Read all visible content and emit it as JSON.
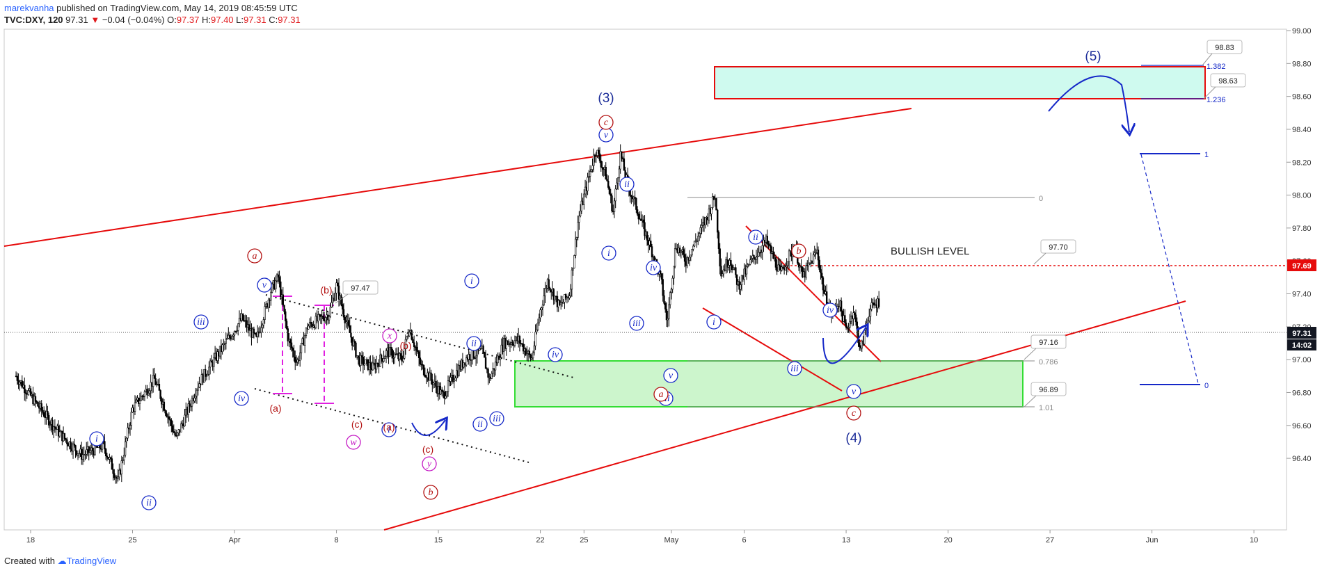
{
  "header": {
    "author": "marekvanha",
    "published_text": "published on TradingView.com, May 14, 2019 08:45:59 UTC",
    "symbol": "TVC:DXY, 120",
    "last_price": "97.31",
    "change_arrow": "▼",
    "change": "−0.04 (−0.04%)",
    "o_label": "O:",
    "o_value": "97.37",
    "h_label": "H:",
    "h_value": "97.40",
    "l_label": "L:",
    "l_value": "97.31",
    "c_label": "C:",
    "c_value": "97.31"
  },
  "footer": {
    "created_with": "Created with",
    "brand": "TradingView"
  },
  "chart_data": {
    "type": "candlestick",
    "title": "TVC:DXY, 120",
    "ylim": [
      96.2,
      99.0
    ],
    "y_ticks": [
      "99.00",
      "98.80",
      "98.60",
      "98.40",
      "98.20",
      "98.00",
      "97.80",
      "97.60",
      "97.40",
      "97.20",
      "97.00",
      "96.80",
      "96.60",
      "96.40"
    ],
    "x_ticks": [
      {
        "label": "18",
        "day": 0
      },
      {
        "label": "25",
        "day": 7
      },
      {
        "label": "Apr",
        "day": 14
      },
      {
        "label": "8",
        "day": 21
      },
      {
        "label": "15",
        "day": 28
      },
      {
        "label": "22",
        "day": 35
      },
      {
        "label": "25",
        "day": 38
      },
      {
        "label": "May",
        "day": 44
      },
      {
        "label": "6",
        "day": 49
      },
      {
        "label": "13",
        "day": 56
      },
      {
        "label": "20",
        "day": 63
      },
      {
        "label": "27",
        "day": 70
      },
      {
        "label": "Jun",
        "day": 77
      },
      {
        "label": "10",
        "day": 84
      }
    ],
    "price_keypoints": [
      [
        -1.0,
        96.9
      ],
      [
        0.5,
        96.72
      ],
      [
        2.0,
        96.55
      ],
      [
        3.5,
        96.42
      ],
      [
        5.0,
        96.48
      ],
      [
        6.0,
        96.26
      ],
      [
        7.0,
        96.7
      ],
      [
        8.5,
        96.88
      ],
      [
        10.0,
        96.52
      ],
      [
        11.5,
        96.85
      ],
      [
        13.0,
        97.05
      ],
      [
        14.5,
        97.25
      ],
      [
        15.5,
        97.12
      ],
      [
        16.5,
        97.42
      ],
      [
        17.0,
        97.5
      ],
      [
        17.7,
        97.12
      ],
      [
        18.3,
        96.98
      ],
      [
        19.0,
        97.2
      ],
      [
        20.5,
        97.28
      ],
      [
        21.0,
        97.45
      ],
      [
        21.6,
        97.25
      ],
      [
        22.5,
        97.0
      ],
      [
        23.5,
        96.95
      ],
      [
        24.5,
        97.05
      ],
      [
        25.5,
        97.0
      ],
      [
        26.0,
        97.2
      ],
      [
        26.8,
        96.96
      ],
      [
        27.5,
        96.88
      ],
      [
        28.3,
        96.78
      ],
      [
        29.2,
        96.92
      ],
      [
        30.0,
        97.02
      ],
      [
        31.0,
        97.05
      ],
      [
        31.5,
        96.88
      ],
      [
        32.5,
        97.1
      ],
      [
        33.5,
        97.12
      ],
      [
        34.4,
        97.0
      ],
      [
        35.0,
        97.3
      ],
      [
        35.5,
        97.48
      ],
      [
        36.3,
        97.32
      ],
      [
        37.0,
        97.4
      ],
      [
        37.6,
        97.85
      ],
      [
        38.3,
        98.1
      ],
      [
        38.8,
        98.28
      ],
      [
        39.5,
        98.12
      ],
      [
        40.0,
        97.9
      ],
      [
        40.5,
        98.25
      ],
      [
        41.0,
        98.06
      ],
      [
        41.5,
        97.95
      ],
      [
        42.0,
        97.82
      ],
      [
        42.7,
        97.65
      ],
      [
        43.3,
        97.48
      ],
      [
        43.7,
        97.22
      ],
      [
        44.3,
        97.7
      ],
      [
        45.0,
        97.6
      ],
      [
        46.0,
        97.78
      ],
      [
        46.5,
        97.88
      ],
      [
        47.0,
        98.0
      ],
      [
        47.4,
        97.52
      ],
      [
        48.0,
        97.62
      ],
      [
        48.6,
        97.45
      ],
      [
        49.5,
        97.6
      ],
      [
        50.5,
        97.72
      ],
      [
        51.5,
        97.52
      ],
      [
        52.0,
        97.62
      ],
      [
        52.5,
        97.68
      ],
      [
        53.0,
        97.5
      ],
      [
        54.0,
        97.66
      ],
      [
        54.5,
        97.4
      ],
      [
        55.0,
        97.28
      ],
      [
        55.5,
        97.35
      ],
      [
        56.0,
        97.18
      ],
      [
        56.5,
        97.3
      ],
      [
        57.0,
        97.05
      ],
      [
        57.6,
        97.3
      ],
      [
        58.3,
        97.36
      ]
    ],
    "current_price": 97.31,
    "current_time": "14:02",
    "price_labels": [
      "97.47",
      "98.83",
      "98.63",
      "97.70",
      "97.16",
      "96.89"
    ],
    "fib_labels": [
      "0",
      "0.786",
      "1.01",
      "1.382",
      "1.236",
      "1",
      "0"
    ],
    "bullish_level_text": "BULLISH LEVEL",
    "bullish_level_value": "97.69",
    "wave_labels_blue_circled": [
      "i",
      "ii",
      "iii",
      "iv",
      "v",
      "i",
      "ii",
      "iii",
      "iv",
      "v",
      "i",
      "ii",
      "iii",
      "iv",
      "v",
      "i",
      "ii",
      "iii",
      "iv",
      "v",
      "i",
      "ii",
      "iii"
    ],
    "wave_labels_red_circled": [
      "a",
      "c",
      "b",
      "a",
      "c",
      "b"
    ],
    "wave_labels_red_paren": [
      "(a)",
      "(b)",
      "(c)",
      "(b)",
      "(a)",
      "(c)"
    ],
    "wave_labels_magenta_circled": [
      "w",
      "x",
      "y"
    ],
    "wave_labels_navy_paren": [
      "(3)",
      "(4)",
      "(5)"
    ],
    "colors": {
      "up_down_candle": "#000000",
      "trendline": "#e60b0b",
      "wave_blue": "#1528c8",
      "wave_red": "#b20e0e",
      "wave_magenta": "#c418c4",
      "support_zone_fill": "#ccf5cc",
      "support_zone_border": "#33dd33",
      "target_zone_fill": "#cffaef",
      "target_zone_border": "#e60b0b",
      "price_tag_bg": "#131722"
    }
  }
}
